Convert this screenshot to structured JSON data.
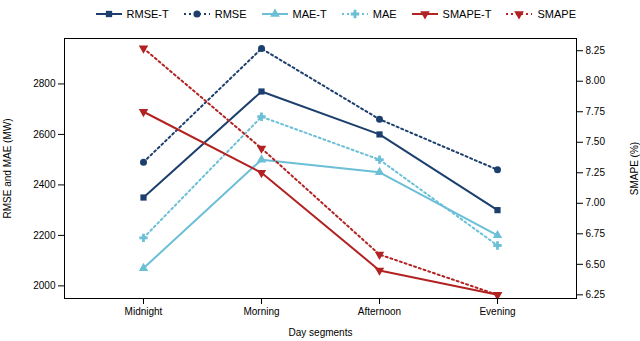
{
  "chart_data": {
    "type": "line",
    "categories": [
      "Midnight",
      "Morning",
      "Afternoon",
      "Evening"
    ],
    "xlabel": "Day segments",
    "ylabel": "RMSE and MAE (MW)",
    "y2label": "SMAPE (%)",
    "ylim": [
      1950,
      2980
    ],
    "yticks": [
      2000,
      2200,
      2400,
      2600,
      2800
    ],
    "y2lim": [
      6.22,
      8.35
    ],
    "y2ticks": [
      6.25,
      {
        "value": 6.5,
        "label": "6.50"
      },
      6.75,
      {
        "value": 7,
        "label": "7.00"
      },
      7.25,
      {
        "value": 7.5,
        "label": "7.50"
      },
      7.75,
      {
        "value": 8,
        "label": "8.00"
      },
      8.25
    ],
    "grid": false,
    "legend": "upper right",
    "series": [
      {
        "name": "RMSE-T",
        "color": "#1c3f6e",
        "line_style": "solid",
        "marker": "square",
        "values": [
          2350,
          2770,
          2600,
          2300
        ]
      },
      {
        "name": "RMSE",
        "color": "#1c3f6e",
        "line_style": "dotted",
        "marker": "circle",
        "values": [
          2490,
          2940,
          2660,
          2460
        ]
      },
      {
        "name": "MAE-T",
        "color": "#6bbfd6",
        "line_style": "solid",
        "marker": "triangle",
        "values": [
          2070,
          2500,
          2450,
          2200
        ]
      },
      {
        "name": "MAE",
        "color": "#6bbfd6",
        "line_style": "dotted",
        "marker": "plus",
        "values": [
          2190,
          2670,
          2500,
          2160
        ]
      },
      {
        "name": "SMAPE-T",
        "color": "#b22222",
        "line_style": "solid",
        "marker": "triangle_down",
        "axis": "y2",
        "values": [
          7.75,
          7.25,
          6.45,
          6.25
        ]
      },
      {
        "name": "SMAPE",
        "color": "#b22222",
        "line_style": "dotted",
        "marker": "triangle_down",
        "axis": "y2",
        "values": [
          8.27,
          7.45,
          6.58,
          6.25
        ]
      }
    ]
  }
}
